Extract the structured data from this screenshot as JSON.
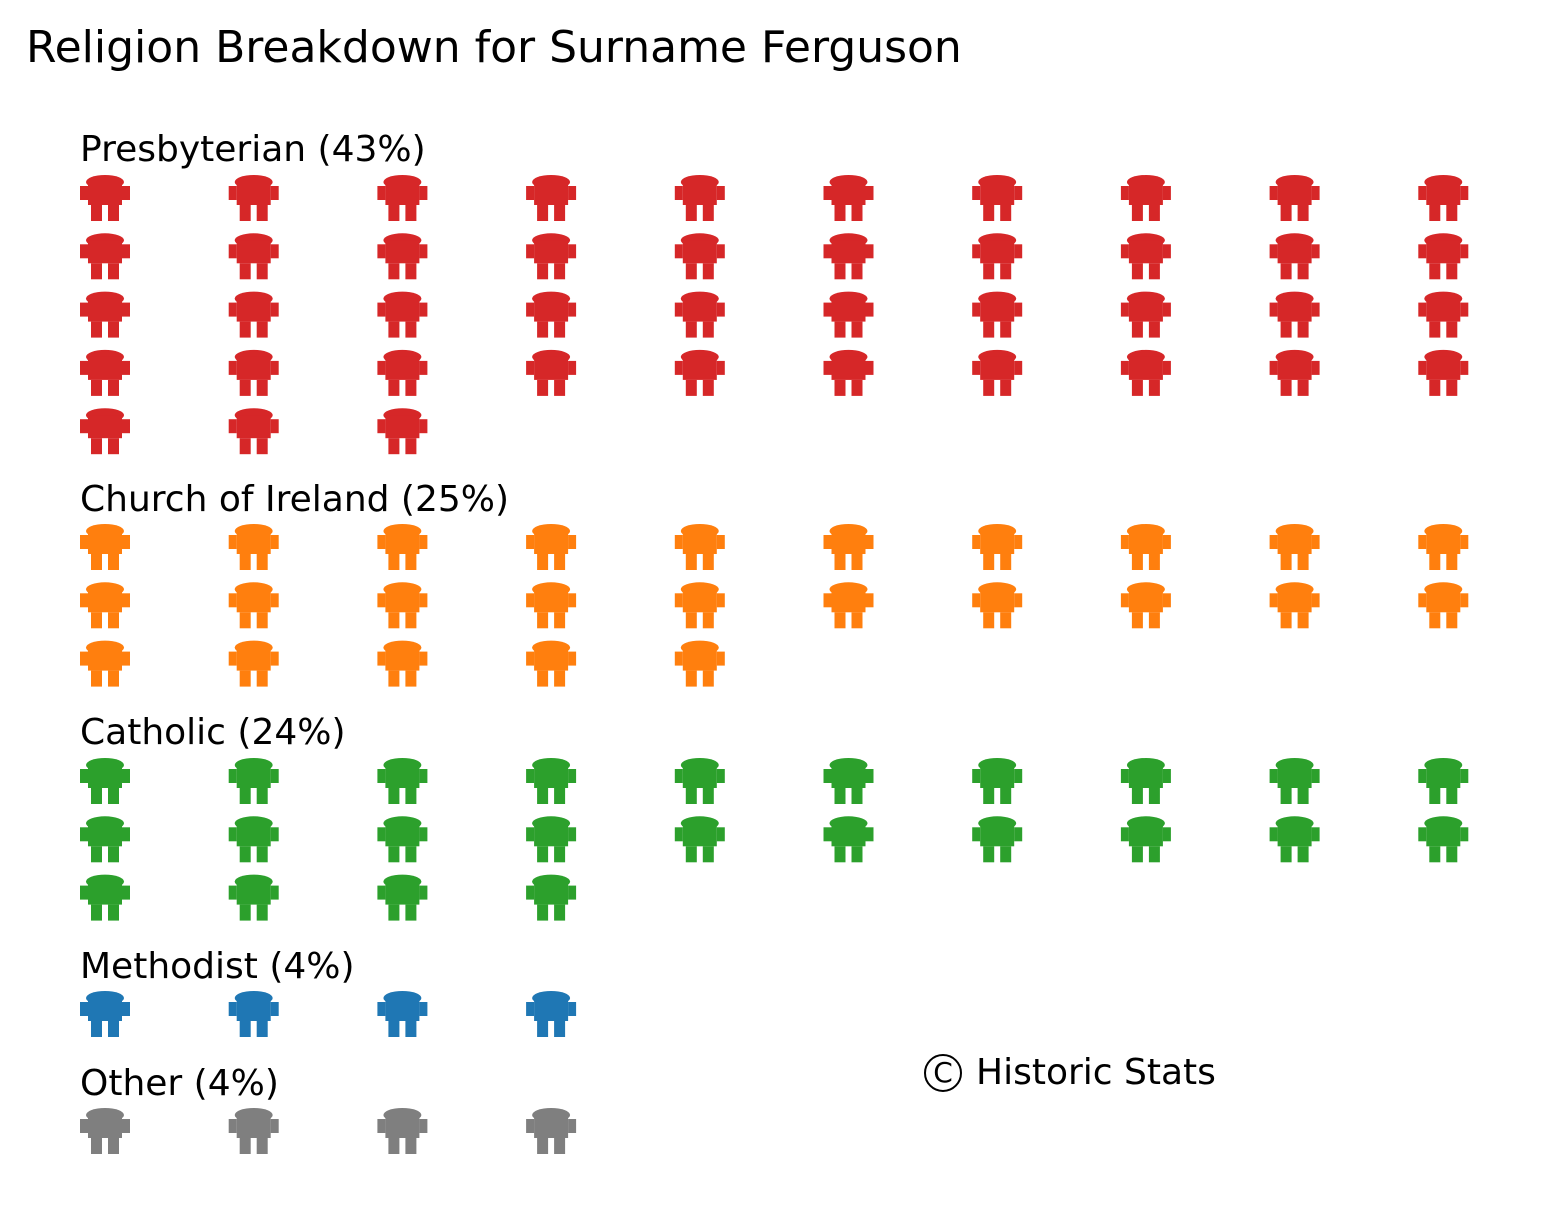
{
  "chart_data": {
    "type": "pictogram",
    "title": "Religion Breakdown for Surname Ferguson",
    "icons_per_row": 10,
    "icon": "person-icon",
    "groups": [
      {
        "label": "Presbyterian (43%)",
        "name": "Presbyterian",
        "percent": 43,
        "count": 43,
        "color": "#d62728"
      },
      {
        "label": "Church of Ireland (25%)",
        "name": "Church of Ireland",
        "percent": 25,
        "count": 25,
        "color": "#ff7f0e"
      },
      {
        "label": "Catholic (24%)",
        "name": "Catholic",
        "percent": 24,
        "count": 24,
        "color": "#2ca02c"
      },
      {
        "label": "Methodist (4%)",
        "name": "Methodist",
        "percent": 4,
        "count": 4,
        "color": "#1f77b4"
      },
      {
        "label": "Other (4%)",
        "name": "Other",
        "percent": 4,
        "count": 4,
        "color": "#7f7f7f"
      }
    ]
  },
  "footer": {
    "symbol": "C",
    "text": "Historic Stats"
  }
}
